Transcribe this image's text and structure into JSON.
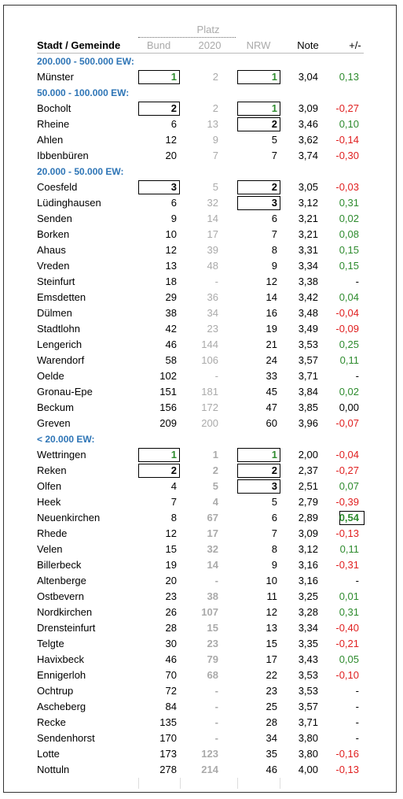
{
  "header": {
    "group": "Platz",
    "columns": [
      "Stadt / Gemeinde",
      "Bund",
      "2020",
      "NRW",
      "Note",
      "+/-"
    ]
  },
  "sections": [
    {
      "title": "200.000 - 500.000 EW:",
      "rows": [
        [
          "Münster",
          "1",
          "2",
          "1",
          "3,04",
          "0,13"
        ]
      ]
    },
    {
      "title": "50.000 - 100.000 EW:",
      "rows": [
        [
          "Bocholt",
          "2",
          "2",
          "1",
          "3,09",
          "-0,27"
        ],
        [
          "Rheine",
          "6",
          "13",
          "2",
          "3,46",
          "0,10"
        ],
        [
          "Ahlen",
          "12",
          "9",
          "5",
          "3,62",
          "-0,14"
        ],
        [
          "Ibbenbüren",
          "20",
          "7",
          "7",
          "3,74",
          "-0,30"
        ]
      ]
    },
    {
      "title": "20.000 - 50.000 EW:",
      "rows": [
        [
          "Coesfeld",
          "3",
          "5",
          "2",
          "3,05",
          "-0,03"
        ],
        [
          "Lüdinghausen",
          "6",
          "32",
          "3",
          "3,12",
          "0,31"
        ],
        [
          "Senden",
          "9",
          "14",
          "6",
          "3,21",
          "0,02"
        ],
        [
          "Borken",
          "10",
          "17",
          "7",
          "3,21",
          "0,08"
        ],
        [
          "Ahaus",
          "12",
          "39",
          "8",
          "3,31",
          "0,15"
        ],
        [
          "Vreden",
          "13",
          "48",
          "9",
          "3,34",
          "0,15"
        ],
        [
          "Steinfurt",
          "18",
          "-",
          "12",
          "3,38",
          "-"
        ],
        [
          "Emsdetten",
          "29",
          "36",
          "14",
          "3,42",
          "0,04"
        ],
        [
          "Dülmen",
          "38",
          "34",
          "16",
          "3,48",
          "-0,04"
        ],
        [
          "Stadtlohn",
          "42",
          "23",
          "19",
          "3,49",
          "-0,09"
        ],
        [
          "Lengerich",
          "46",
          "144",
          "21",
          "3,53",
          "0,25"
        ],
        [
          "Warendorf",
          "58",
          "106",
          "24",
          "3,57",
          "0,11"
        ],
        [
          "Oelde",
          "102",
          "-",
          "33",
          "3,71",
          "-"
        ],
        [
          "Gronau-Epe",
          "151",
          "181",
          "45",
          "3,84",
          "0,02"
        ],
        [
          "Beckum",
          "156",
          "172",
          "47",
          "3,85",
          "0,00"
        ],
        [
          "Greven",
          "209",
          "200",
          "60",
          "3,96",
          "-0,07"
        ]
      ]
    },
    {
      "title": "< 20.000 EW:",
      "rows": [
        [
          "Wettringen",
          "1",
          "1",
          "1",
          "2,00",
          "-0,04"
        ],
        [
          "Reken",
          "2",
          "2",
          "2",
          "2,37",
          "-0,27"
        ],
        [
          "Olfen",
          "4",
          "5",
          "3",
          "2,51",
          "0,07"
        ],
        [
          "Heek",
          "7",
          "4",
          "5",
          "2,79",
          "-0,39"
        ],
        [
          "Neuenkirchen",
          "8",
          "67",
          "6",
          "2,89",
          "0,54"
        ],
        [
          "Rhede",
          "12",
          "17",
          "7",
          "3,09",
          "-0,13"
        ],
        [
          "Velen",
          "15",
          "32",
          "8",
          "3,12",
          "0,11"
        ],
        [
          "Billerbeck",
          "19",
          "14",
          "9",
          "3,16",
          "-0,31"
        ],
        [
          "Altenberge",
          "20",
          "-",
          "10",
          "3,16",
          "-"
        ],
        [
          "Ostbevern",
          "23",
          "38",
          "11",
          "3,25",
          "0,01"
        ],
        [
          "Nordkirchen",
          "26",
          "107",
          "12",
          "3,28",
          "0,31"
        ],
        [
          "Drensteinfurt",
          "28",
          "15",
          "13",
          "3,34",
          "-0,40"
        ],
        [
          "Telgte",
          "30",
          "23",
          "15",
          "3,35",
          "-0,21"
        ],
        [
          "Havixbeck",
          "46",
          "79",
          "17",
          "3,43",
          "0,05"
        ],
        [
          "Ennigerloh",
          "70",
          "68",
          "22",
          "3,53",
          "-0,10"
        ],
        [
          "Ochtrup",
          "72",
          "-",
          "23",
          "3,53",
          "-"
        ],
        [
          "Ascheberg",
          "84",
          "-",
          "25",
          "3,57",
          "-"
        ],
        [
          "Recke",
          "135",
          "-",
          "28",
          "3,71",
          "-"
        ],
        [
          "Sendenhorst",
          "170",
          "-",
          "34",
          "3,80",
          "-"
        ],
        [
          "Lotte",
          "173",
          "123",
          "35",
          "3,80",
          "-0,16"
        ],
        [
          "Nottuln",
          "278",
          "214",
          "46",
          "4,00",
          "-0,13"
        ]
      ]
    }
  ]
}
